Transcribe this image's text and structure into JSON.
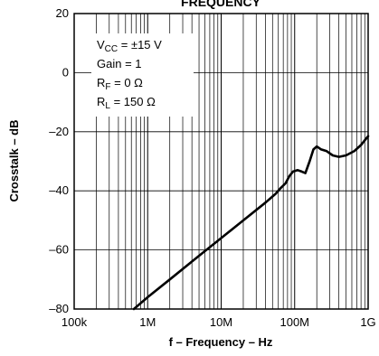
{
  "chart_data": {
    "type": "line",
    "title": "FREQUENCY",
    "xlabel": "f – Frequency – Hz",
    "ylabel": "Crosstalk – dB",
    "x_scale": "log",
    "xlim": [
      100000,
      1000000000
    ],
    "ylim": [
      -80,
      20
    ],
    "x_ticks": [
      100000,
      1000000,
      10000000,
      100000000,
      1000000000
    ],
    "x_tick_labels": [
      "100k",
      "1M",
      "10M",
      "100M",
      "1G"
    ],
    "y_ticks": [
      20,
      0,
      -20,
      -40,
      -60,
      -80
    ],
    "y_tick_labels": [
      "20",
      "0",
      "–20",
      "–40",
      "–60",
      "–80"
    ],
    "grid": true,
    "conditions": [
      {
        "main": "V",
        "sub": "CC",
        "rest": " = ±15 V"
      },
      {
        "main": "Gain = 1",
        "sub": "",
        "rest": ""
      },
      {
        "main": "R",
        "sub": "F",
        "rest": " = 0 Ω"
      },
      {
        "main": "R",
        "sub": "L",
        "rest": " = 150 Ω"
      }
    ],
    "series": [
      {
        "x": [
          650000,
          1000000,
          2000000,
          5000000,
          10000000,
          20000000,
          40000000,
          55000000,
          65000000,
          75000000,
          85000000,
          95000000,
          110000000,
          125000000,
          140000000,
          160000000,
          180000000,
          200000000,
          230000000,
          270000000,
          330000000,
          400000000,
          500000000,
          650000000,
          800000000,
          1000000000
        ],
        "y": [
          -80,
          -76,
          -70,
          -62,
          -56,
          -50,
          -44,
          -41,
          -39,
          -37.5,
          -35,
          -33.5,
          -33,
          -33.5,
          -34,
          -30,
          -26,
          -25,
          -26,
          -26.5,
          -28,
          -28.5,
          -28,
          -26.5,
          -24.5,
          -21.5
        ]
      }
    ]
  }
}
